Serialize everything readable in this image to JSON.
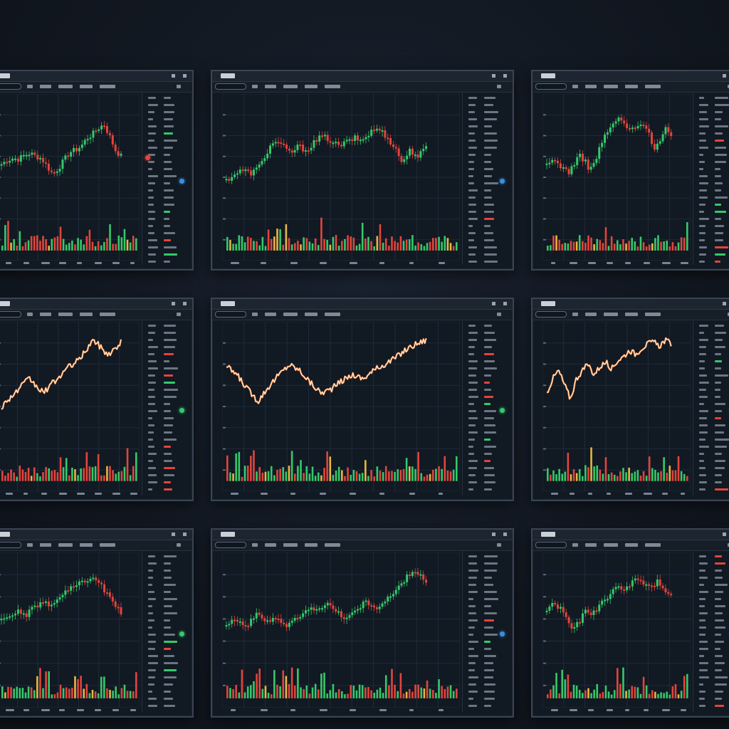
{
  "screen": {
    "background": "#131a23"
  },
  "colors": {
    "up": "#35c96a",
    "down": "#e2453c",
    "grid": "#223041",
    "line_orange": "#ff8c3a",
    "line_white": "#ffffff",
    "accent_blue": "#3a8ee0",
    "alert_red": "#e2453c"
  },
  "panels": [
    {
      "chart_style": "candle",
      "sidebar_dot": "#3a8ee0",
      "alert_dot": true,
      "chart_data": {
        "type": "candlestick",
        "series": [
          {
            "values": [
              0.44,
              0.48,
              0.5,
              0.49,
              0.53,
              0.55,
              0.52,
              0.5,
              0.42,
              0.34,
              0.4,
              0.48,
              0.56,
              0.58,
              0.62,
              0.7,
              0.74,
              0.8,
              0.84,
              0.72,
              0.58,
              0.52
            ]
          }
        ]
      }
    },
    {
      "chart_style": "candle",
      "sidebar_dot": "#3a8ee0",
      "alert_dot": false,
      "chart_data": {
        "type": "candlestick",
        "series": [
          {
            "values": [
              0.28,
              0.34,
              0.38,
              0.35,
              0.4,
              0.55,
              0.68,
              0.62,
              0.55,
              0.62,
              0.58,
              0.66,
              0.72,
              0.68,
              0.62,
              0.66,
              0.7,
              0.68,
              0.76,
              0.8,
              0.72,
              0.62,
              0.46,
              0.58,
              0.52,
              0.6
            ]
          }
        ]
      }
    },
    {
      "chart_style": "candle",
      "sidebar_dot": "#3a8ee0",
      "alert_dot": false,
      "chart_data": {
        "type": "candlestick",
        "series": [
          {
            "values": [
              0.42,
              0.48,
              0.46,
              0.4,
              0.36,
              0.44,
              0.52,
              0.48,
              0.38,
              0.48,
              0.64,
              0.74,
              0.82,
              0.9,
              0.86,
              0.8,
              0.78,
              0.82,
              0.86,
              0.72,
              0.6,
              0.7,
              0.8,
              0.72
            ]
          }
        ]
      }
    },
    {
      "chart_style": "line",
      "sidebar_dot": "#35c96a",
      "alert_dot": false,
      "chart_data": {
        "type": "line",
        "series": [
          {
            "values": [
              0.3,
              0.38,
              0.44,
              0.52,
              0.58,
              0.5,
              0.44,
              0.52,
              0.58,
              0.66,
              0.72,
              0.76,
              0.86,
              0.96,
              0.9,
              0.82,
              0.86,
              0.94
            ]
          }
        ]
      }
    },
    {
      "chart_style": "line",
      "sidebar_dot": "#35c96a",
      "alert_dot": false,
      "chart_data": {
        "type": "line",
        "series": [
          {
            "values": [
              0.7,
              0.62,
              0.48,
              0.36,
              0.5,
              0.62,
              0.72,
              0.66,
              0.54,
              0.44,
              0.48,
              0.56,
              0.62,
              0.58,
              0.66,
              0.72,
              0.78,
              0.86,
              0.92,
              0.96
            ]
          }
        ]
      }
    },
    {
      "chart_style": "line",
      "sidebar_dot": "#35c96a",
      "alert_dot": false,
      "chart_data": {
        "type": "line",
        "series": [
          {
            "values": [
              0.44,
              0.58,
              0.66,
              0.52,
              0.38,
              0.58,
              0.66,
              0.72,
              0.62,
              0.7,
              0.74,
              0.68,
              0.76,
              0.8,
              0.86,
              0.82,
              0.88,
              0.92,
              0.94,
              0.9,
              0.96,
              0.92
            ]
          }
        ]
      }
    },
    {
      "chart_style": "candle",
      "sidebar_dot": "#35c96a",
      "alert_dot": false,
      "chart_data": {
        "type": "candlestick",
        "series": [
          {
            "values": [
              0.42,
              0.48,
              0.52,
              0.46,
              0.56,
              0.62,
              0.58,
              0.64,
              0.72,
              0.78,
              0.82,
              0.88,
              0.84,
              0.74,
              0.6,
              0.5
            ]
          }
        ]
      }
    },
    {
      "chart_style": "candle",
      "sidebar_dot": "#3a8ee0",
      "alert_dot": false,
      "chart_data": {
        "type": "candlestick",
        "series": [
          {
            "values": [
              0.4,
              0.44,
              0.36,
              0.48,
              0.42,
              0.46,
              0.36,
              0.44,
              0.52,
              0.56,
              0.6,
              0.52,
              0.44,
              0.54,
              0.62,
              0.56,
              0.64,
              0.74,
              0.88,
              0.96,
              0.84
            ]
          }
        ]
      }
    },
    {
      "chart_style": "candle",
      "sidebar_dot": "#3a8ee0",
      "alert_dot": false,
      "chart_data": {
        "type": "candlestick",
        "series": [
          {
            "values": [
              0.54,
              0.6,
              0.56,
              0.46,
              0.3,
              0.42,
              0.52,
              0.5,
              0.58,
              0.66,
              0.72,
              0.8,
              0.76,
              0.84,
              0.86,
              0.8,
              0.78,
              0.84,
              0.76,
              0.7
            ]
          }
        ]
      }
    }
  ]
}
